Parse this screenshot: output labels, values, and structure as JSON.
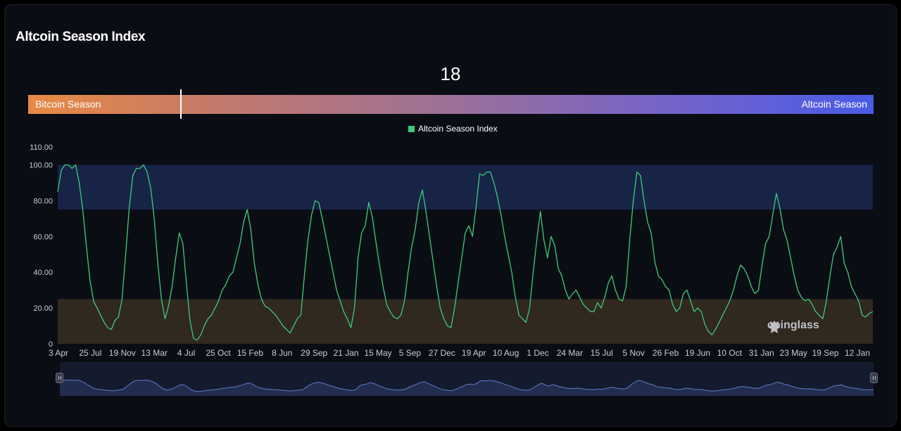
{
  "page": {
    "title": "Altcoin Season Index"
  },
  "indicator": {
    "current_value": "18",
    "current_numeric": 18,
    "left_label": "Bitcoin Season",
    "right_label": "Altcoin Season"
  },
  "watermark": "coinglass",
  "colors": {
    "line": "#3ecb7a",
    "altcoin_band": "#172347",
    "bitcoin_band": "#31281f",
    "navigator_line": "#5f7cc6",
    "navigator_fill": "#2a3a66"
  },
  "chart_data": {
    "type": "line",
    "title": "",
    "xlabel": "",
    "ylabel": "",
    "ylim": [
      0,
      110
    ],
    "y_ticks": [
      "0",
      "20.00",
      "40.00",
      "60.00",
      "80.00",
      "100.00",
      "110.00"
    ],
    "x_ticks": [
      "3 Apr",
      "25 Jul",
      "19 Nov",
      "13 Mar",
      "4 Jul",
      "25 Oct",
      "15 Feb",
      "8 Jun",
      "29 Sep",
      "21 Jan",
      "15 May",
      "5 Sep",
      "27 Dec",
      "19 Apr",
      "10 Aug",
      "1 Dec",
      "24 Mar",
      "15 Jul",
      "5 Nov",
      "26 Feb",
      "19 Jun",
      "10 Oct",
      "31 Jan",
      "23 May",
      "19 Sep",
      "12 Jan"
    ],
    "legend": [
      "Altcoin Season Index"
    ],
    "legend_position": "top-center",
    "bands": [
      {
        "from": 75,
        "to": 100,
        "meaning": "Altcoin Season"
      },
      {
        "from": 0,
        "to": 25,
        "meaning": "Bitcoin Season"
      }
    ],
    "series": [
      {
        "name": "Altcoin Season Index",
        "values": [
          85,
          97,
          100,
          100,
          98,
          100,
          90,
          75,
          55,
          36,
          24,
          20,
          16,
          12,
          9,
          8,
          13,
          15,
          25,
          50,
          76,
          94,
          98,
          98,
          100,
          96,
          87,
          70,
          45,
          25,
          14,
          21,
          32,
          48,
          62,
          56,
          34,
          13,
          3,
          2,
          5,
          10,
          14,
          16,
          20,
          24,
          30,
          33,
          38,
          40,
          48,
          56,
          68,
          75,
          64,
          45,
          33,
          25,
          21,
          20,
          18,
          16,
          13,
          10,
          8,
          6,
          10,
          14,
          16,
          38,
          58,
          72,
          80,
          79,
          70,
          60,
          50,
          40,
          30,
          24,
          18,
          14,
          9,
          20,
          48,
          62,
          66,
          79,
          71,
          57,
          44,
          32,
          22,
          18,
          15,
          14,
          16,
          24,
          40,
          54,
          64,
          79,
          86,
          74,
          60,
          46,
          32,
          20,
          14,
          10,
          9,
          20,
          34,
          48,
          62,
          66,
          60,
          76,
          95,
          94,
          96,
          96,
          90,
          82,
          72,
          60,
          50,
          40,
          26,
          16,
          14,
          12,
          20,
          40,
          58,
          74,
          58,
          48,
          60,
          55,
          42,
          38,
          30,
          25,
          28,
          30,
          26,
          22,
          20,
          18,
          18,
          23,
          20,
          26,
          34,
          38,
          30,
          25,
          24,
          32,
          58,
          80,
          96,
          94,
          80,
          68,
          62,
          46,
          38,
          36,
          32,
          30,
          22,
          18,
          20,
          28,
          30,
          24,
          18,
          20,
          18,
          11,
          7,
          5,
          8,
          12,
          16,
          20,
          24,
          30,
          38,
          44,
          42,
          38,
          32,
          28,
          30,
          44,
          56,
          60,
          72,
          84,
          76,
          64,
          58,
          48,
          38,
          30,
          26,
          24,
          25,
          22,
          18,
          16,
          14,
          24,
          38,
          50,
          54,
          60,
          45,
          40,
          32,
          28,
          24,
          16,
          15,
          17,
          18
        ]
      }
    ]
  }
}
